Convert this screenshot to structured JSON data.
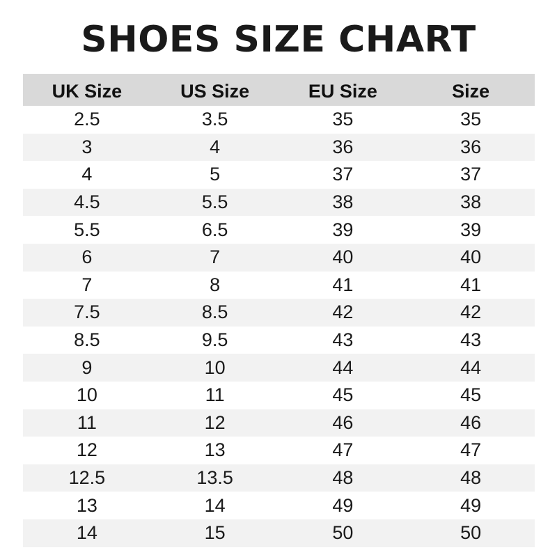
{
  "title": "SHOES SIZE CHART",
  "colors": {
    "header_bg": "#d9d9d9",
    "alt_row_bg": "#f2f2f2",
    "text": "#1a1a1a"
  },
  "table": {
    "headers": [
      "UK Size",
      "US Size",
      "EU Size",
      "Size"
    ],
    "rows": [
      [
        "2.5",
        "3.5",
        "35",
        "35"
      ],
      [
        "3",
        "4",
        "36",
        "36"
      ],
      [
        "4",
        "5",
        "37",
        "37"
      ],
      [
        "4.5",
        "5.5",
        "38",
        "38"
      ],
      [
        "5.5",
        "6.5",
        "39",
        "39"
      ],
      [
        "6",
        "7",
        "40",
        "40"
      ],
      [
        "7",
        "8",
        "41",
        "41"
      ],
      [
        "7.5",
        "8.5",
        "42",
        "42"
      ],
      [
        "8.5",
        "9.5",
        "43",
        "43"
      ],
      [
        "9",
        "10",
        "44",
        "44"
      ],
      [
        "10",
        "11",
        "45",
        "45"
      ],
      [
        "11",
        "12",
        "46",
        "46"
      ],
      [
        "12",
        "13",
        "47",
        "47"
      ],
      [
        "12.5",
        "13.5",
        "48",
        "48"
      ],
      [
        "13",
        "14",
        "49",
        "49"
      ],
      [
        "14",
        "15",
        "50",
        "50"
      ]
    ]
  }
}
